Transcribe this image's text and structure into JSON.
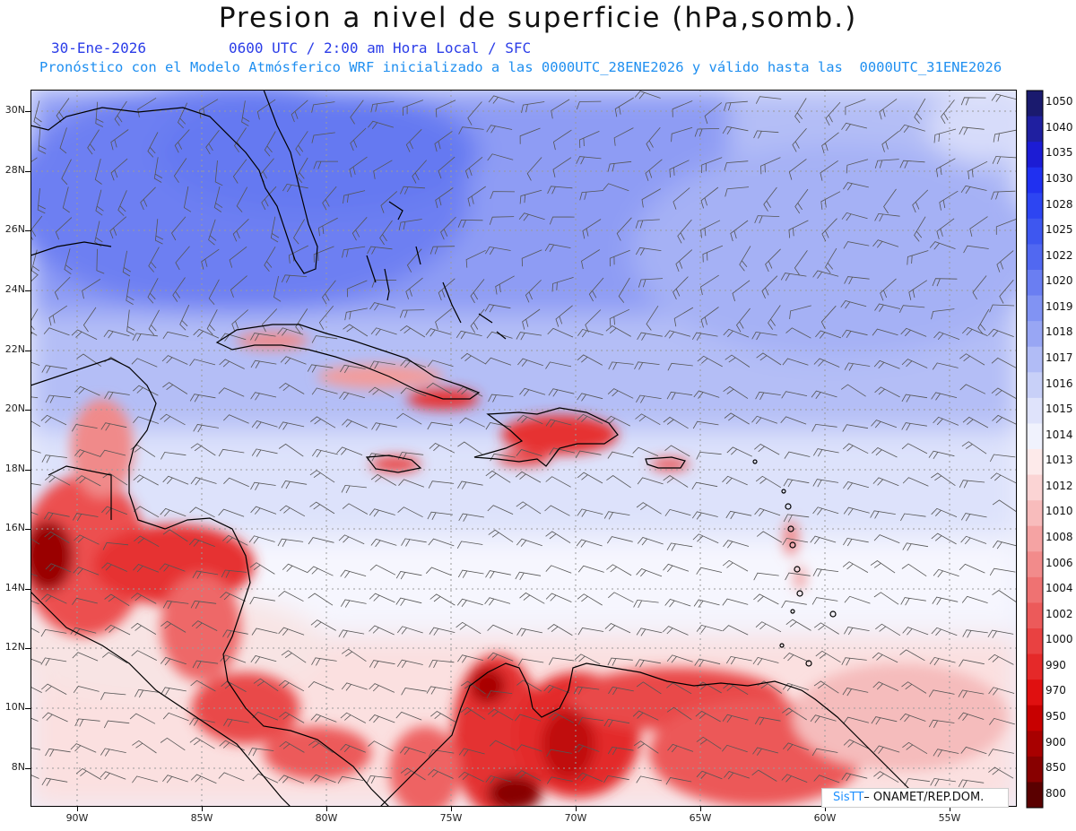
{
  "title": "Presion a nivel de superficie (hPa,somb.)",
  "date": "30-Ene-2026",
  "time_line": "0600 UTC / 2:00 am Hora Local / SFC",
  "model_line": "Pronóstico con el Modelo Atmósferico WRF inicializado a las 0000UTC_28ENE2026 y válido hasta las  0000UTC_31ENE2026",
  "credit": {
    "logo": "SisTT",
    "text": "– ONAMET/REP.DOM."
  },
  "lat_labels": [
    "30N",
    "28N",
    "26N",
    "24N",
    "22N",
    "20N",
    "18N",
    "16N",
    "14N",
    "12N",
    "10N",
    "8N"
  ],
  "lon_labels": [
    "90W",
    "85W",
    "80W",
    "75W",
    "70W",
    "65W",
    "60W",
    "55W"
  ],
  "colorbar": {
    "levels": [
      "1050",
      "1040",
      "1035",
      "1030",
      "1028",
      "1025",
      "1022",
      "1020",
      "1019",
      "1018",
      "1017",
      "1016",
      "1015",
      "1014",
      "1013",
      "1012",
      "1010",
      "1008",
      "1006",
      "1004",
      "1002",
      "1000",
      "990",
      "970",
      "950",
      "900",
      "850",
      "800"
    ],
    "colors": [
      "#1a1a6e",
      "#1f1fa0",
      "#1c1cd4",
      "#2030f0",
      "#2d45f2",
      "#3e57f0",
      "#5168f1",
      "#6a7ef2",
      "#8193f3",
      "#98a6f4",
      "#b1bcf6",
      "#c8d0f8",
      "#dfe3fb",
      "#f0f2fd",
      "#fdeaea",
      "#fbd4d4",
      "#f8bcbc",
      "#f5a3a3",
      "#f28b8b",
      "#ef7272",
      "#ec5a5a",
      "#e94141",
      "#e52929",
      "#e01010",
      "#c80000",
      "#a80000",
      "#880000",
      "#5a0000"
    ]
  },
  "colors": {
    "title": "#111111",
    "date": "#2b3de8",
    "model": "#1f8ff0",
    "coast": "#000000",
    "barbs": "#555555"
  }
}
